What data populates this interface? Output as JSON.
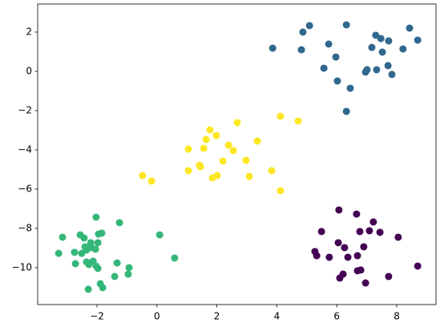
{
  "chart_data": {
    "type": "scatter",
    "xlim": [
      -3.98,
      9.31
    ],
    "ylim": [
      -11.88,
      3.43
    ],
    "xticks": [
      {
        "value": -2,
        "label": "−2"
      },
      0,
      2,
      4,
      6,
      8
    ],
    "yticks": [
      {
        "value": -10,
        "label": "−10"
      },
      {
        "value": -8,
        "label": "−8"
      },
      {
        "value": -6,
        "label": "−6"
      },
      {
        "value": -4,
        "label": "−4"
      },
      {
        "value": -2,
        "label": "−2"
      },
      0,
      2
    ],
    "series": [
      {
        "color": "#31688e",
        "x": [
          4.87,
          5.09,
          3.86,
          4.82,
          5.73,
          6.32,
          5.97,
          5.57,
          6.02,
          6.45,
          6.32,
          7.3,
          7.47,
          7.17,
          7.52,
          7.73,
          8.43,
          8.7,
          8.21,
          7.01,
          6.96,
          7.33,
          7.71,
          7.84
        ],
        "y": [
          2.0,
          2.33,
          1.18,
          1.1,
          1.39,
          2.37,
          0.73,
          0.16,
          -0.49,
          -0.86,
          -2.04,
          1.84,
          1.67,
          1.22,
          0.98,
          1.55,
          2.2,
          1.59,
          1.14,
          0.08,
          -0.04,
          0.08,
          0.29,
          -0.16
        ]
      },
      {
        "color": "#fde725",
        "x": [
          4.12,
          4.71,
          2.68,
          1.77,
          1.98,
          3.35,
          1.64,
          2.39,
          2.55,
          1.05,
          1.56,
          1.45,
          2.97,
          2.2,
          1.42,
          -0.48,
          -0.18,
          1.05,
          2.01,
          1.85,
          3.08,
          3.83,
          4.12
        ],
        "y": [
          -2.29,
          -2.53,
          -2.61,
          -2.98,
          -3.27,
          -3.55,
          -3.47,
          -3.76,
          -4.04,
          -3.96,
          -3.92,
          -4.86,
          -4.53,
          -4.57,
          -4.78,
          -5.31,
          -5.59,
          -5.06,
          -5.31,
          -5.43,
          -5.35,
          -5.06,
          -6.08
        ]
      },
      {
        "color": "#35b779",
        "x": [
          -2.03,
          -1.25,
          0.09,
          -3.15,
          -2.56,
          -2.43,
          -2.4,
          -2.21,
          -2.05,
          -1.95,
          -1.84,
          -2.75,
          -2.51,
          -2.35,
          -2.19,
          -3.28,
          -2.72,
          -2.35,
          -2.27,
          -2.13,
          -2.03,
          -1.97,
          -1.33,
          -0.93,
          -0.96,
          -1.41,
          -1.89,
          -1.81,
          -2.29,
          0.59,
          -1.97
        ],
        "y": [
          -7.43,
          -7.71,
          -8.33,
          -8.45,
          -8.33,
          -8.49,
          -8.94,
          -8.73,
          -9.06,
          -8.29,
          -8.24,
          -9.22,
          -9.27,
          -9.1,
          -8.98,
          -9.27,
          -9.8,
          -9.71,
          -9.84,
          -9.67,
          -9.92,
          -10.04,
          -9.76,
          -10.0,
          -10.33,
          -10.45,
          -10.82,
          -11.02,
          -11.1,
          -9.51,
          -8.73
        ]
      },
      {
        "color": "#440154",
        "x": [
          6.07,
          6.66,
          7.22,
          6.77,
          7.09,
          5.49,
          6.05,
          6.26,
          8.05,
          5.27,
          5.33,
          5.75,
          6.69,
          6.37,
          6.9,
          7.44,
          6.8,
          6.69,
          6.21,
          6.1,
          6.96,
          7.73,
          8.7
        ],
        "y": [
          -7.06,
          -7.27,
          -7.67,
          -8.16,
          -8.12,
          -8.16,
          -8.73,
          -8.98,
          -8.45,
          -9.18,
          -9.39,
          -9.47,
          -9.39,
          -9.47,
          -8.94,
          -8.2,
          -10.12,
          -10.16,
          -10.33,
          -10.53,
          -10.78,
          -10.45,
          -9.92
        ]
      }
    ]
  }
}
